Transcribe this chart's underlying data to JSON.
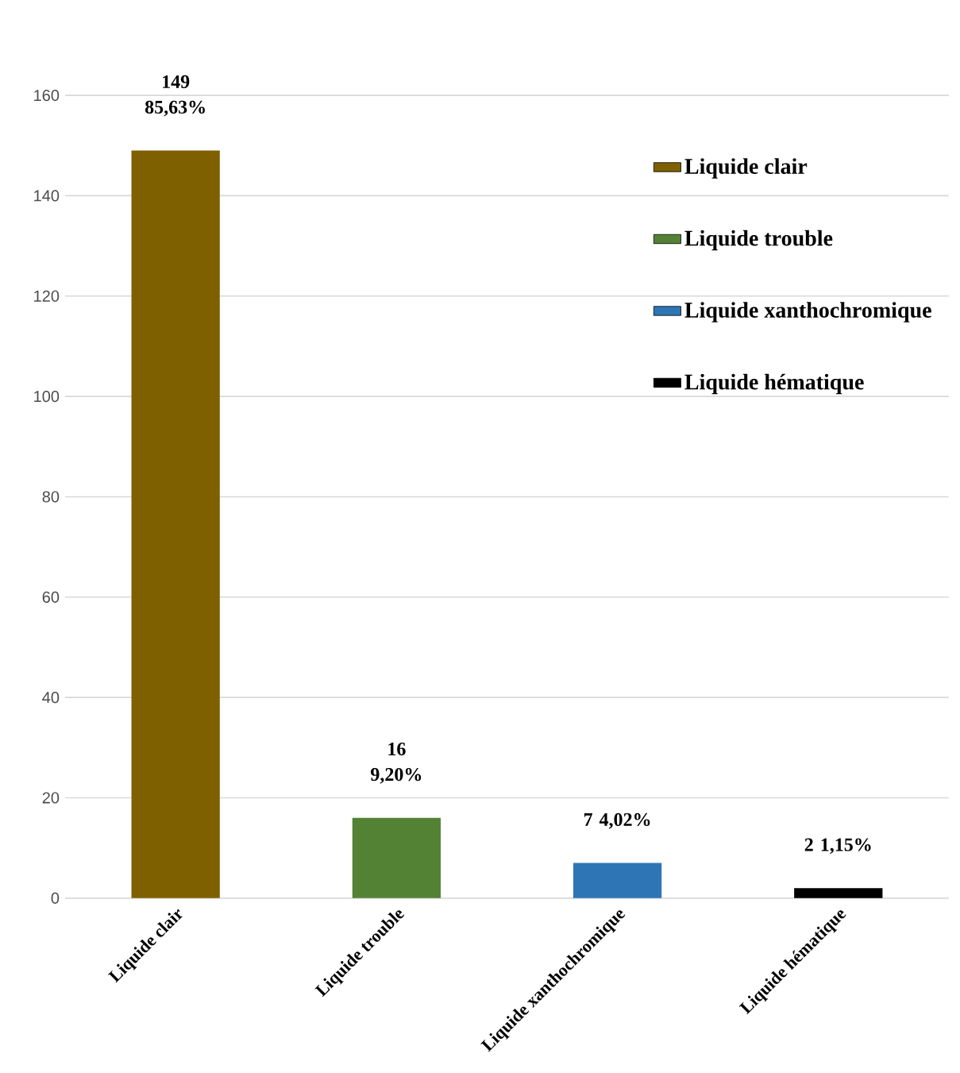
{
  "chart_data": {
    "type": "bar",
    "categories": [
      "Liquide clair",
      "Liquide trouble",
      "Liquide xanthochromique",
      "Liquide hématique"
    ],
    "series": [
      {
        "name": "Liquide clair",
        "color": "#7f6000",
        "values": [
          149,
          null,
          null,
          null
        ],
        "value_labels": [
          "149 85,63%",
          null,
          null,
          null
        ]
      },
      {
        "name": "Liquide trouble",
        "color": "#548235",
        "values": [
          null,
          16,
          null,
          null
        ],
        "value_labels": [
          null,
          "16 9,20%",
          null,
          null
        ]
      },
      {
        "name": "Liquide xanthochromique",
        "color": "#2e75b6",
        "values": [
          null,
          null,
          7,
          null
        ],
        "value_labels": [
          null,
          null,
          "7 4,02%",
          null
        ]
      },
      {
        "name": "Liquide hématique",
        "color": "#000000",
        "values": [
          null,
          null,
          null,
          2
        ],
        "value_labels": [
          null,
          null,
          null,
          "2 1,15%"
        ]
      }
    ],
    "ylim": [
      0,
      160
    ],
    "yticks": [
      0,
      20,
      40,
      60,
      80,
      100,
      120,
      140,
      160
    ],
    "grid": "y",
    "legend": "top right"
  }
}
